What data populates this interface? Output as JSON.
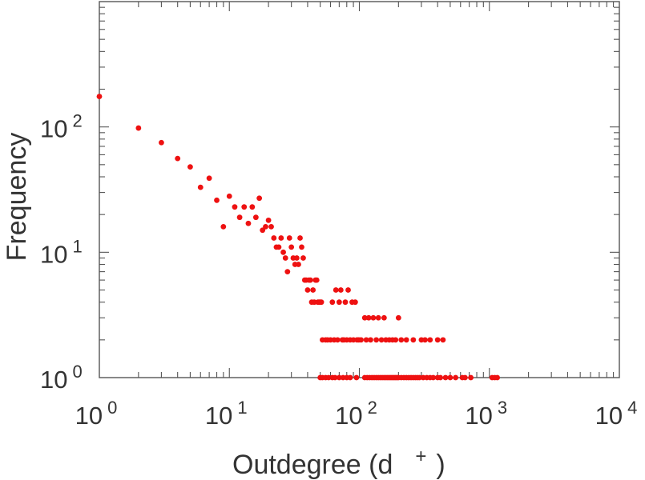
{
  "chart_data": {
    "type": "scatter",
    "x_scale": "log",
    "y_scale": "log",
    "xlim": [
      1,
      10000
    ],
    "ylim": [
      1,
      1000
    ],
    "grid": false,
    "xlabel": "Outdegree (d",
    "xlabel_sup": "+",
    "xlabel_close": ")",
    "ylabel": "Frequency",
    "x_ticks": [
      {
        "base": "10",
        "exp": "0"
      },
      {
        "base": "10",
        "exp": "1"
      },
      {
        "base": "10",
        "exp": "2"
      },
      {
        "base": "10",
        "exp": "3"
      },
      {
        "base": "10",
        "exp": "4"
      }
    ],
    "y_ticks": [
      {
        "base": "10",
        "exp": "0"
      },
      {
        "base": "10",
        "exp": "1"
      },
      {
        "base": "10",
        "exp": "2"
      }
    ],
    "marker_color": "#ee1111",
    "points": [
      [
        1,
        175
      ],
      [
        2,
        98
      ],
      [
        3,
        75
      ],
      [
        4,
        56
      ],
      [
        5,
        48
      ],
      [
        6,
        33
      ],
      [
        7,
        39
      ],
      [
        8,
        26
      ],
      [
        9,
        16
      ],
      [
        10,
        28
      ],
      [
        11,
        23
      ],
      [
        12,
        19
      ],
      [
        13,
        23
      ],
      [
        14,
        17
      ],
      [
        15,
        23
      ],
      [
        16,
        19
      ],
      [
        17,
        27
      ],
      [
        18,
        15
      ],
      [
        19,
        16
      ],
      [
        20,
        18
      ],
      [
        21,
        16
      ],
      [
        22,
        13
      ],
      [
        23,
        11
      ],
      [
        24,
        11
      ],
      [
        25,
        13
      ],
      [
        26,
        10
      ],
      [
        27,
        9
      ],
      [
        28,
        7
      ],
      [
        29,
        13
      ],
      [
        30,
        11
      ],
      [
        31,
        9
      ],
      [
        32,
        8
      ],
      [
        33,
        9
      ],
      [
        34,
        8
      ],
      [
        35,
        13
      ],
      [
        36,
        11
      ],
      [
        37,
        9
      ],
      [
        38,
        6
      ],
      [
        39,
        6
      ],
      [
        40,
        5
      ],
      [
        41,
        6
      ],
      [
        42,
        6
      ],
      [
        43,
        4
      ],
      [
        44,
        5
      ],
      [
        45,
        4
      ],
      [
        46,
        6
      ],
      [
        47,
        6
      ],
      [
        48,
        4
      ],
      [
        49,
        4
      ],
      [
        50,
        4
      ],
      [
        51,
        4
      ],
      [
        52,
        2
      ],
      [
        55,
        2
      ],
      [
        57,
        2
      ],
      [
        60,
        2
      ],
      [
        62,
        4
      ],
      [
        64,
        2
      ],
      [
        66,
        5
      ],
      [
        68,
        2
      ],
      [
        70,
        4
      ],
      [
        72,
        5
      ],
      [
        74,
        2
      ],
      [
        76,
        2
      ],
      [
        78,
        4
      ],
      [
        80,
        2
      ],
      [
        82,
        5
      ],
      [
        85,
        2
      ],
      [
        88,
        4
      ],
      [
        90,
        2
      ],
      [
        93,
        4
      ],
      [
        96,
        2
      ],
      [
        99,
        2
      ],
      [
        103,
        2
      ],
      [
        110,
        3
      ],
      [
        113,
        2
      ],
      [
        118,
        3
      ],
      [
        122,
        2
      ],
      [
        128,
        3
      ],
      [
        135,
        2
      ],
      [
        140,
        3
      ],
      [
        148,
        2
      ],
      [
        155,
        3
      ],
      [
        160,
        2
      ],
      [
        170,
        2
      ],
      [
        180,
        2
      ],
      [
        190,
        2
      ],
      [
        200,
        3
      ],
      [
        210,
        2
      ],
      [
        230,
        2
      ],
      [
        260,
        2
      ],
      [
        300,
        2
      ],
      [
        320,
        2
      ],
      [
        350,
        2
      ],
      [
        400,
        2
      ],
      [
        440,
        2
      ],
      [
        50,
        1
      ],
      [
        52,
        1
      ],
      [
        55,
        1
      ],
      [
        58,
        1
      ],
      [
        62,
        1
      ],
      [
        65,
        1
      ],
      [
        70,
        1
      ],
      [
        75,
        1
      ],
      [
        80,
        1
      ],
      [
        85,
        1
      ],
      [
        95,
        1
      ],
      [
        110,
        1
      ],
      [
        115,
        1
      ],
      [
        120,
        1
      ],
      [
        125,
        1
      ],
      [
        130,
        1
      ],
      [
        135,
        1
      ],
      [
        140,
        1
      ],
      [
        145,
        1
      ],
      [
        150,
        1
      ],
      [
        155,
        1
      ],
      [
        160,
        1
      ],
      [
        165,
        1
      ],
      [
        170,
        1
      ],
      [
        175,
        1
      ],
      [
        180,
        1
      ],
      [
        185,
        1
      ],
      [
        190,
        1
      ],
      [
        195,
        1
      ],
      [
        200,
        1
      ],
      [
        210,
        1
      ],
      [
        220,
        1
      ],
      [
        230,
        1
      ],
      [
        240,
        1
      ],
      [
        250,
        1
      ],
      [
        260,
        1
      ],
      [
        270,
        1
      ],
      [
        280,
        1
      ],
      [
        290,
        1
      ],
      [
        310,
        1
      ],
      [
        330,
        1
      ],
      [
        350,
        1
      ],
      [
        370,
        1
      ],
      [
        400,
        1
      ],
      [
        420,
        1
      ],
      [
        460,
        1
      ],
      [
        500,
        1
      ],
      [
        550,
        1
      ],
      [
        620,
        1
      ],
      [
        650,
        1
      ],
      [
        720,
        1
      ],
      [
        1050,
        1
      ],
      [
        1100,
        1
      ],
      [
        1150,
        1
      ]
    ]
  }
}
